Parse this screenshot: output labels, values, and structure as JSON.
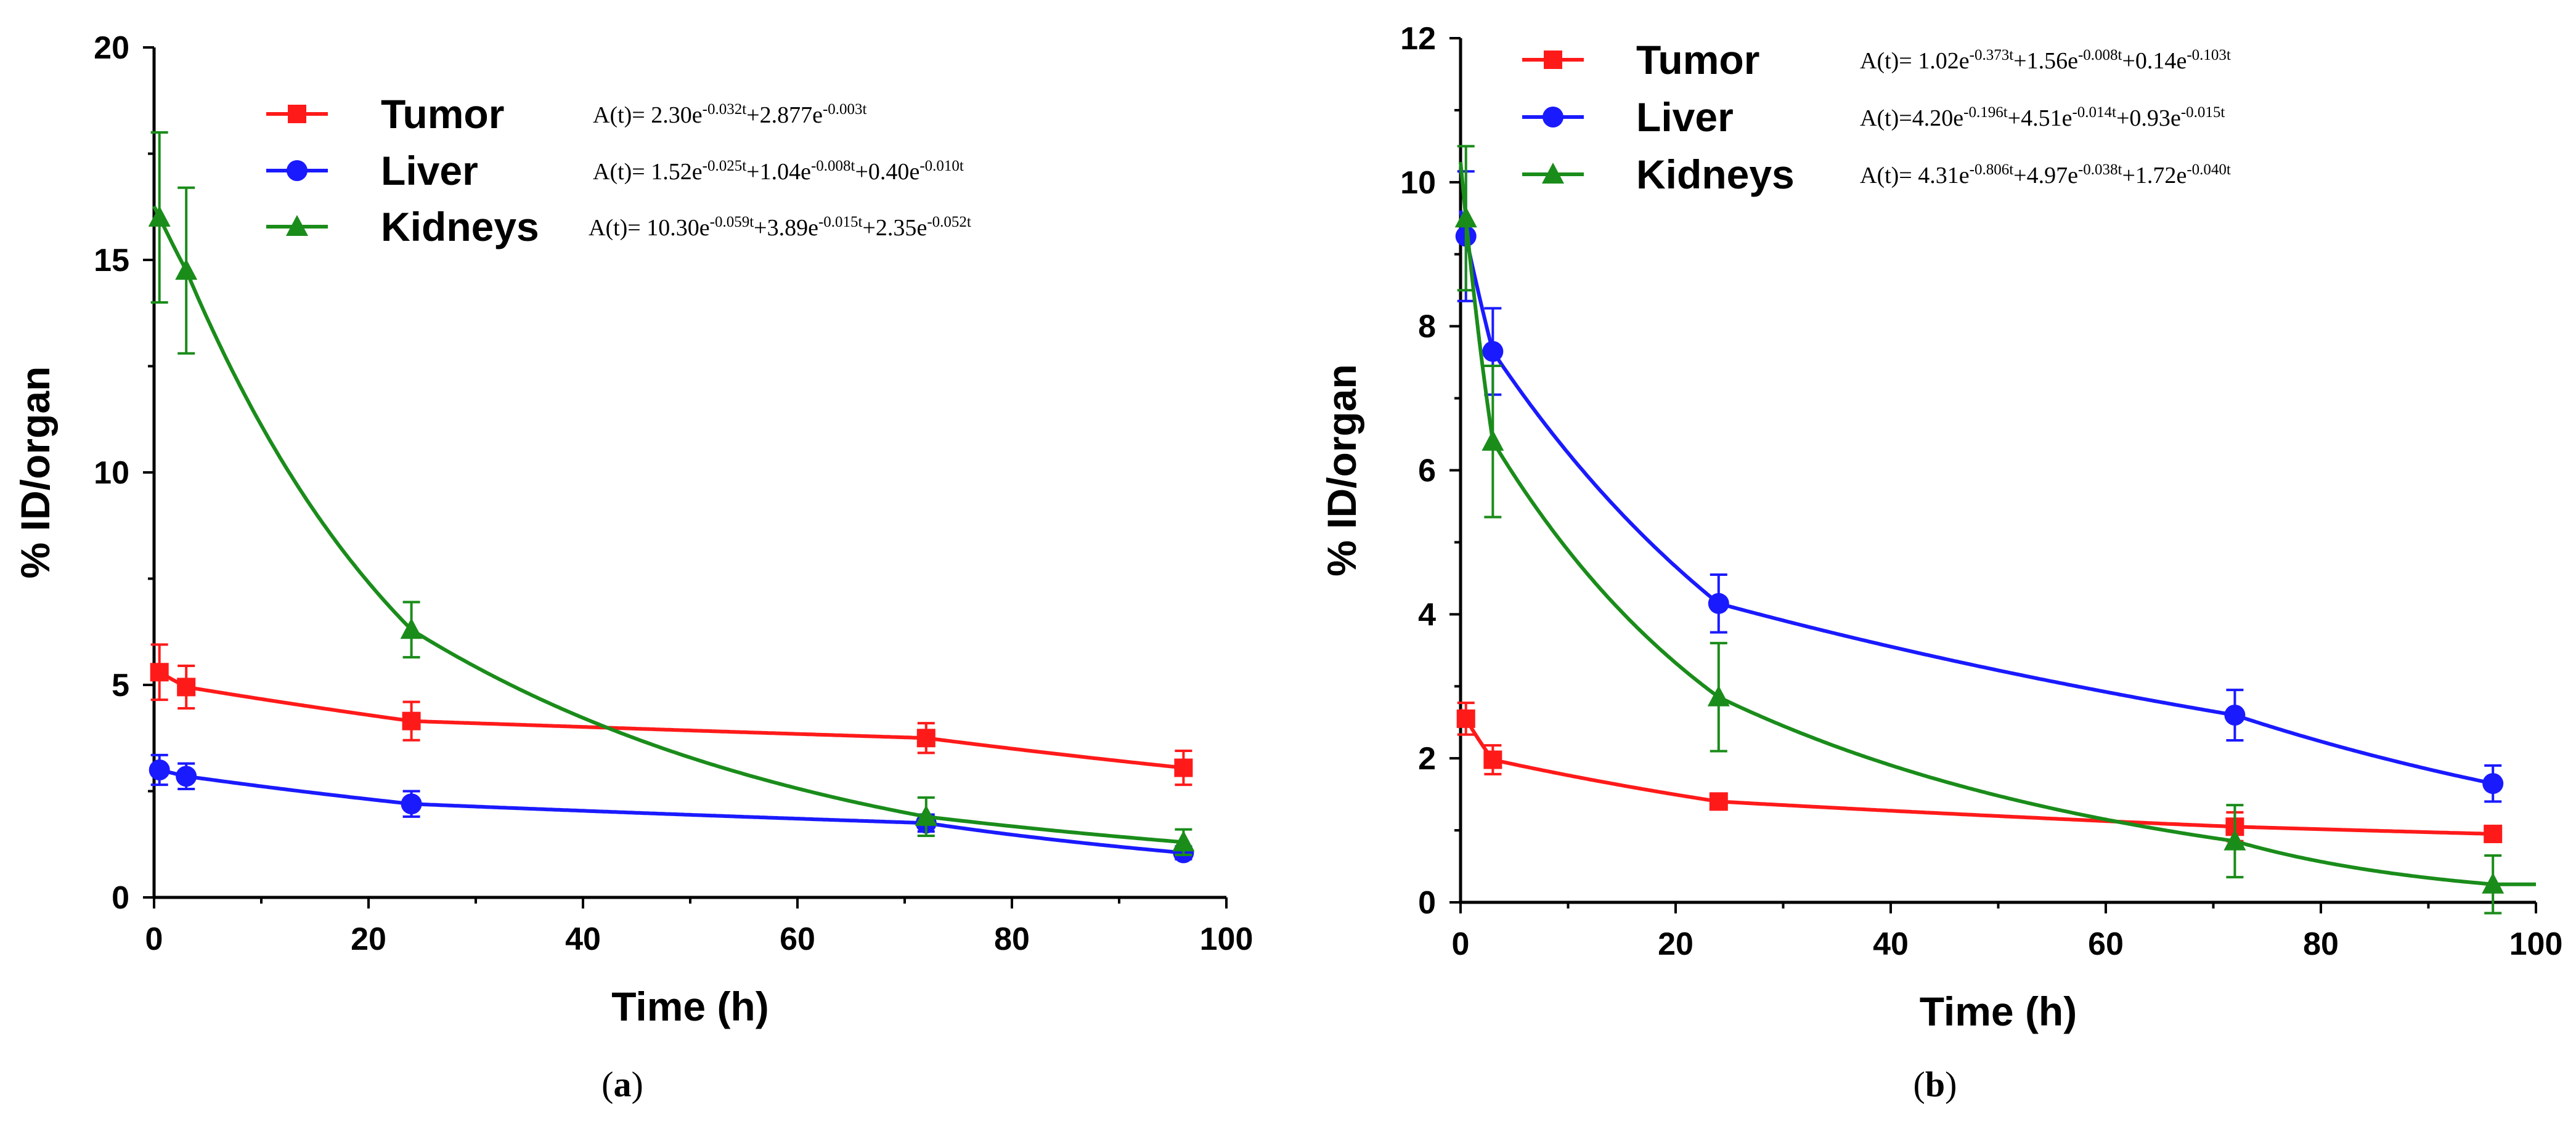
{
  "chart_data": [
    {
      "type": "line",
      "panel_label": "a",
      "title": "",
      "xlabel": "Time (h)",
      "ylabel": "% ID/organ",
      "xlim": [
        0,
        100
      ],
      "ylim": [
        0,
        20
      ],
      "xticks": [
        0,
        20,
        40,
        60,
        80,
        100
      ],
      "yticks": [
        0,
        5,
        10,
        15,
        20
      ],
      "grid": false,
      "legend_position": "top",
      "series": [
        {
          "name": "Tumor",
          "color": "#ff1a1a",
          "marker": "square",
          "x": [
            0.5,
            3,
            24,
            72,
            96
          ],
          "values": [
            5.3,
            4.95,
            4.15,
            3.75,
            3.05
          ],
          "errors": [
            0.65,
            0.5,
            0.45,
            0.35,
            0.4
          ],
          "fit": {
            "coefficients": [
              2.3,
              2.877
            ],
            "rates": [
              -0.032,
              -0.003
            ]
          },
          "equation": {
            "prefix": "A(t)= ",
            "terms": [
              {
                "coef": "2.30",
                "exp": "-0.032t"
              },
              {
                "coef": "+2.877",
                "exp": "-0.003t"
              }
            ]
          }
        },
        {
          "name": "Liver",
          "color": "#1a1aff",
          "marker": "circle",
          "x": [
            0.5,
            3,
            24,
            72,
            96
          ],
          "values": [
            3.0,
            2.85,
            2.2,
            1.75,
            1.05
          ],
          "errors": [
            0.35,
            0.3,
            0.3,
            0.2,
            0.15
          ],
          "fit": {
            "coefficients": [
              1.52,
              1.04,
              0.4
            ],
            "rates": [
              -0.025,
              -0.008,
              -0.01
            ]
          },
          "equation": {
            "prefix": "A(t)= ",
            "terms": [
              {
                "coef": "1.52",
                "exp": "-0.025t"
              },
              {
                "coef": "+1.04",
                "exp": "-0.008t"
              },
              {
                "coef": "+0.40",
                "exp": "-0.010t"
              }
            ]
          }
        },
        {
          "name": "Kidneys",
          "color": "#1a8c1a",
          "marker": "triangle",
          "x": [
            0.5,
            3,
            24,
            72,
            96
          ],
          "values": [
            16.0,
            14.75,
            6.3,
            1.9,
            1.3
          ],
          "errors": [
            2.0,
            1.95,
            0.65,
            0.45,
            0.3
          ],
          "fit": {
            "coefficients": [
              10.3,
              3.89,
              2.35
            ],
            "rates": [
              -0.059,
              -0.015,
              -0.052
            ]
          },
          "equation": {
            "prefix": "A(t)= ",
            "terms": [
              {
                "coef": "10.30",
                "exp": "-0.059t"
              },
              {
                "coef": "+3.89",
                "exp": "-0.015t"
              },
              {
                "coef": "+2.35",
                "exp": "-0.052t"
              }
            ]
          }
        }
      ]
    },
    {
      "type": "line",
      "panel_label": "b",
      "title": "",
      "xlabel": "Time (h)",
      "ylabel": "% ID/organ",
      "xlim": [
        0,
        100
      ],
      "ylim": [
        0,
        12
      ],
      "xticks": [
        0,
        20,
        40,
        60,
        80,
        100
      ],
      "yticks": [
        0,
        2,
        4,
        6,
        8,
        10,
        12
      ],
      "grid": false,
      "legend_position": "top",
      "series": [
        {
          "name": "Tumor",
          "color": "#ff1a1a",
          "marker": "square",
          "x": [
            0.5,
            3,
            24,
            72,
            96
          ],
          "values": [
            2.55,
            1.98,
            1.4,
            1.05,
            0.95
          ],
          "errors": [
            0.22,
            0.2,
            0.08,
            0.2,
            0.1
          ],
          "fit": {
            "coefficients": [
              1.02,
              1.56,
              0.14
            ],
            "rates": [
              -0.373,
              -0.008,
              -0.103
            ]
          },
          "equation": {
            "prefix": "A(t)= ",
            "terms": [
              {
                "coef": "1.02",
                "exp": "-0.373t"
              },
              {
                "coef": "+1.56",
                "exp": "-0.008t"
              },
              {
                "coef": "+0.14",
                "exp": "-0.103t"
              }
            ]
          }
        },
        {
          "name": "Liver",
          "color": "#1a1aff",
          "marker": "circle",
          "x": [
            0.5,
            3,
            24,
            72,
            96
          ],
          "values": [
            9.25,
            7.65,
            4.15,
            2.6,
            1.65
          ],
          "errors": [
            0.9,
            0.6,
            0.4,
            0.35,
            0.25
          ],
          "fit": {
            "coefficients": [
              4.2,
              4.51,
              0.93
            ],
            "rates": [
              -0.196,
              -0.014,
              -0.015
            ]
          },
          "equation": {
            "prefix": "A(t)=",
            "terms": [
              {
                "coef": "4.20",
                "exp": "-0.196t"
              },
              {
                "coef": "+4.51",
                "exp": "-0.014t"
              },
              {
                "coef": "+0.93",
                "exp": "-0.015t"
              }
            ]
          }
        },
        {
          "name": "Kidneys",
          "color": "#1a8c1a",
          "marker": "triangle",
          "x": [
            0.5,
            3,
            24,
            72,
            96
          ],
          "values": [
            9.5,
            6.4,
            2.85,
            0.85,
            0.25
          ],
          "errors": [
            1.0,
            1.05,
            0.75,
            0.5,
            0.4
          ],
          "fit": {
            "coefficients": [
              4.31,
              4.97,
              1.72
            ],
            "rates": [
              -0.806,
              -0.038,
              -0.04
            ]
          },
          "equation": {
            "prefix": "A(t)= ",
            "terms": [
              {
                "coef": "4.31",
                "exp": "-0.806t"
              },
              {
                "coef": "+4.97",
                "exp": "-0.038t"
              },
              {
                "coef": "+1.72",
                "exp": "-0.040t"
              }
            ]
          }
        }
      ]
    }
  ]
}
